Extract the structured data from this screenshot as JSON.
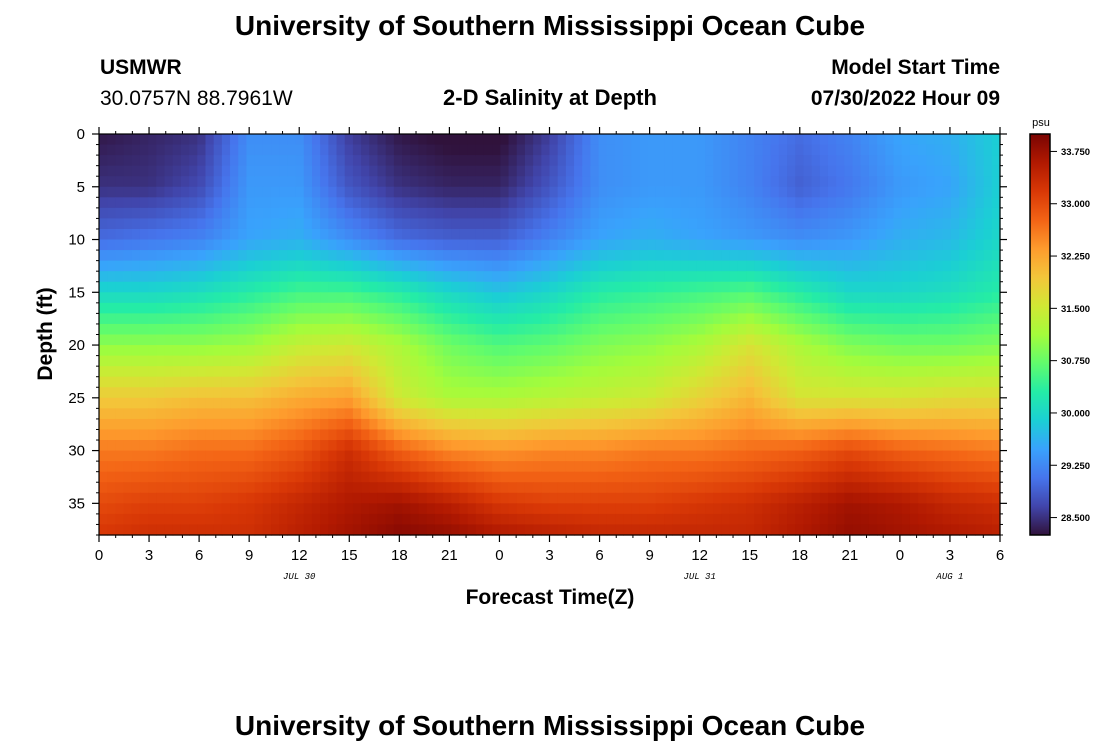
{
  "header": {
    "title": "University of Southern Mississippi Ocean Cube",
    "station": "USMWR",
    "coords": "30.0757N  88.7961W",
    "plot_title": "2-D Salinity at Depth",
    "model_label": "Model Start Time",
    "model_time": "07/30/2022 Hour 09"
  },
  "footer": {
    "title": "University of Southern Mississippi Ocean Cube"
  },
  "colors": {
    "scale": [
      "#30123b",
      "#4145ab",
      "#4675ed",
      "#39a2fc",
      "#1bcfd4",
      "#24eca6",
      "#61fc6c",
      "#a4fc3b",
      "#d1e834",
      "#f3c63a",
      "#fe9b2d",
      "#f36315",
      "#d93806",
      "#b11901",
      "#7a0402"
    ]
  },
  "chart_data": {
    "type": "heatmap",
    "title": "2-D Salinity at Depth",
    "xlabel": "Forecast Time(Z)",
    "ylabel": "Depth (ft)",
    "x_ticks": [
      "0",
      "3",
      "6",
      "9",
      "12",
      "15",
      "18",
      "21",
      "0",
      "3",
      "6",
      "9",
      "12",
      "15",
      "18",
      "21",
      "0",
      "3",
      "6"
    ],
    "x_hours": [
      0,
      3,
      6,
      9,
      12,
      15,
      18,
      21,
      24,
      27,
      30,
      33,
      36,
      39,
      42,
      45,
      48,
      51,
      54
    ],
    "date_labels": [
      {
        "text": "JUL 30",
        "hour": 12
      },
      {
        "text": "JUL 31",
        "hour": 36
      },
      {
        "text": "AUG 1",
        "hour": 51
      }
    ],
    "xlim": [
      0,
      54
    ],
    "y_ticks": [
      0,
      5,
      10,
      15,
      20,
      25,
      30,
      35
    ],
    "ylim": [
      0,
      38
    ],
    "y_inverted": true,
    "colorbar": {
      "unit": "psu",
      "ticks": [
        "33.750",
        "33.000",
        "32.250",
        "31.500",
        "30.750",
        "30.000",
        "29.250",
        "28.500"
      ],
      "tick_values": [
        33.75,
        33.0,
        32.25,
        31.5,
        30.75,
        30.0,
        29.25,
        28.5
      ],
      "range": [
        28.25,
        34.0
      ]
    },
    "hours": [
      0,
      3,
      6,
      9,
      12,
      15,
      18,
      21,
      24,
      27,
      30,
      33,
      36,
      39,
      42,
      45,
      48,
      51,
      54
    ],
    "depths": [
      0,
      5,
      10,
      15,
      20,
      25,
      30,
      35,
      38
    ],
    "salinity": [
      [
        28.3,
        28.4,
        28.5,
        29.3,
        29.3,
        28.6,
        28.3,
        28.2,
        28.2,
        28.6,
        29.3,
        29.4,
        29.4,
        29.2,
        29.0,
        29.2,
        29.5,
        29.6,
        29.9
      ],
      [
        28.5,
        28.5,
        28.7,
        29.4,
        29.4,
        28.8,
        28.5,
        28.4,
        28.4,
        28.8,
        29.3,
        29.4,
        29.4,
        29.2,
        28.9,
        29.1,
        29.4,
        29.5,
        29.9
      ],
      [
        29.0,
        29.1,
        29.2,
        29.5,
        29.6,
        29.3,
        29.0,
        28.9,
        28.9,
        29.2,
        29.5,
        29.6,
        29.5,
        29.4,
        29.3,
        29.4,
        29.6,
        29.7,
        30.0
      ],
      [
        30.0,
        30.0,
        30.1,
        30.3,
        30.5,
        30.5,
        30.3,
        30.0,
        29.8,
        30.0,
        30.3,
        30.4,
        30.5,
        30.6,
        30.3,
        30.0,
        30.0,
        30.1,
        30.3
      ],
      [
        31.0,
        31.0,
        31.0,
        31.1,
        31.4,
        31.5,
        31.2,
        30.8,
        30.6,
        30.7,
        30.9,
        31.0,
        31.2,
        31.6,
        31.2,
        30.9,
        30.8,
        30.8,
        30.9
      ],
      [
        31.9,
        31.9,
        32.0,
        32.0,
        32.2,
        32.3,
        31.5,
        31.2,
        31.2,
        31.3,
        31.4,
        31.5,
        31.8,
        32.1,
        31.6,
        31.6,
        31.6,
        31.7,
        31.7
      ],
      [
        32.6,
        32.6,
        32.7,
        32.7,
        32.9,
        33.3,
        32.8,
        32.5,
        32.4,
        32.5,
        32.5,
        32.6,
        32.6,
        32.7,
        32.8,
        33.0,
        32.8,
        32.7,
        32.6
      ],
      [
        33.0,
        33.1,
        33.1,
        33.2,
        33.4,
        33.6,
        33.7,
        33.5,
        33.2,
        33.1,
        33.1,
        33.1,
        33.2,
        33.3,
        33.5,
        33.7,
        33.6,
        33.4,
        33.3
      ],
      [
        33.2,
        33.3,
        33.3,
        33.3,
        33.5,
        33.7,
        33.9,
        33.8,
        33.6,
        33.5,
        33.4,
        33.4,
        33.4,
        33.4,
        33.6,
        33.8,
        33.7,
        33.6,
        33.5
      ]
    ]
  }
}
